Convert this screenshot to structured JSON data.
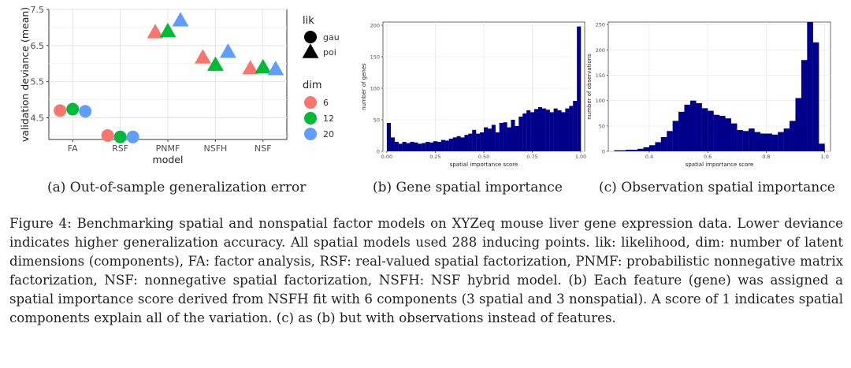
{
  "panel_a": {
    "caption": "(a) Out-of-sample generalization error",
    "legend": {
      "lik_title": "lik",
      "lik_items": [
        {
          "label": "gau",
          "shape": "circle"
        },
        {
          "label": "poi",
          "shape": "triangle"
        }
      ],
      "dim_title": "dim",
      "dim_items": [
        {
          "label": "6",
          "color": "#F8766D"
        },
        {
          "label": "12",
          "color": "#00BA38"
        },
        {
          "label": "20",
          "color": "#619CFF"
        }
      ]
    }
  },
  "panel_b": {
    "caption": "(b) Gene spatial importance"
  },
  "panel_c": {
    "caption": "(c) Observation spatial importance"
  },
  "figure_caption": {
    "text": "Figure 4: Benchmarking spatial and nonspatial factor models on XYZeq mouse liver gene expression data. Lower deviance indicates higher generalization accuracy. All spatial models used 288 inducing points. lik: likelihood, dim: number of latent dimensions (components), FA: factor analysis, RSF: real-valued spatial factorization, PNMF: probabilistic nonnegative matrix factorization, NSF: nonnegative spatial factorization, NSFH: NSF hybrid model. (b) Each feature (gene) was assigned a spatial importance score derived from NSFH fit with 6 components (3 spatial and 3 nonspatial). A score of 1 indicates spatial components explain all of the variation. (c) as (b) but with observations instead of features."
  },
  "chart_data": [
    {
      "type": "scatter",
      "xlabel": "model",
      "ylabel": "validation deviance (mean)",
      "categories": [
        "FA",
        "RSF",
        "PNMF",
        "NSFH",
        "NSF"
      ],
      "ylim": [
        3.9,
        7.5
      ],
      "yticks": [
        "4.5",
        "5.5",
        "6.5",
        "7.5"
      ],
      "grid": true,
      "points": [
        {
          "model": "FA",
          "dim": "6",
          "lik": "gau",
          "y": 4.7
        },
        {
          "model": "FA",
          "dim": "12",
          "lik": "gau",
          "y": 4.74
        },
        {
          "model": "FA",
          "dim": "20",
          "lik": "gau",
          "y": 4.68
        },
        {
          "model": "RSF",
          "dim": "6",
          "lik": "gau",
          "y": 4.01
        },
        {
          "model": "RSF",
          "dim": "12",
          "lik": "gau",
          "y": 3.97
        },
        {
          "model": "RSF",
          "dim": "20",
          "lik": "gau",
          "y": 3.97
        },
        {
          "model": "PNMF",
          "dim": "6",
          "lik": "poi",
          "y": 6.87
        },
        {
          "model": "PNMF",
          "dim": "12",
          "lik": "poi",
          "y": 6.9
        },
        {
          "model": "PNMF",
          "dim": "20",
          "lik": "poi",
          "y": 7.2
        },
        {
          "model": "NSFH",
          "dim": "6",
          "lik": "poi",
          "y": 6.17
        },
        {
          "model": "NSFH",
          "dim": "12",
          "lik": "poi",
          "y": 5.97
        },
        {
          "model": "NSFH",
          "dim": "20",
          "lik": "poi",
          "y": 6.33
        },
        {
          "model": "NSF",
          "dim": "6",
          "lik": "poi",
          "y": 5.87
        },
        {
          "model": "NSF",
          "dim": "12",
          "lik": "poi",
          "y": 5.9
        },
        {
          "model": "NSF",
          "dim": "20",
          "lik": "poi",
          "y": 5.85
        }
      ]
    },
    {
      "type": "bar",
      "xlabel": "spatial importance score",
      "ylabel": "number of genes",
      "xlim": [
        -0.02,
        1.02
      ],
      "xticks": [
        "0.00",
        "0.25",
        "0.50",
        "0.75",
        "1.00"
      ],
      "ylim": [
        0,
        205
      ],
      "yticks": [
        "0",
        "50",
        "100",
        "150",
        "200"
      ],
      "bar_color": "#00008B",
      "bins": [
        0.0,
        0.02,
        0.04,
        0.06,
        0.08,
        0.1,
        0.12,
        0.14,
        0.16,
        0.18,
        0.2,
        0.22,
        0.24,
        0.26,
        0.28,
        0.3,
        0.32,
        0.34,
        0.36,
        0.38,
        0.4,
        0.42,
        0.44,
        0.46,
        0.48,
        0.5,
        0.52,
        0.54,
        0.56,
        0.58,
        0.6,
        0.62,
        0.64,
        0.66,
        0.68,
        0.7,
        0.72,
        0.74,
        0.76,
        0.78,
        0.8,
        0.82,
        0.84,
        0.86,
        0.88,
        0.9,
        0.92,
        0.94,
        0.96,
        0.98
      ],
      "values": [
        45,
        22,
        15,
        12,
        15,
        13,
        15,
        14,
        12,
        13,
        15,
        14,
        16,
        15,
        18,
        17,
        20,
        22,
        24,
        22,
        26,
        28,
        34,
        28,
        30,
        38,
        36,
        42,
        30,
        45,
        46,
        38,
        50,
        40,
        55,
        60,
        65,
        62,
        67,
        70,
        68,
        66,
        62,
        68,
        65,
        62,
        68,
        72,
        80,
        198
      ]
    },
    {
      "type": "bar",
      "xlabel": "spatial importance score",
      "ylabel": "number of observations",
      "xlim": [
        0.26,
        1.02
      ],
      "xticks": [
        "0.4",
        "0.6",
        "0.8",
        "1.0"
      ],
      "ylim": [
        0,
        255
      ],
      "yticks": [
        "0",
        "50",
        "100",
        "150",
        "200",
        "250"
      ],
      "bar_color": "#00008B",
      "bins": [
        0.28,
        0.3,
        0.32,
        0.34,
        0.36,
        0.38,
        0.4,
        0.42,
        0.44,
        0.46,
        0.48,
        0.5,
        0.52,
        0.54,
        0.56,
        0.58,
        0.6,
        0.62,
        0.64,
        0.66,
        0.68,
        0.7,
        0.72,
        0.74,
        0.76,
        0.78,
        0.8,
        0.82,
        0.84,
        0.86,
        0.88,
        0.9,
        0.92,
        0.94,
        0.96,
        0.98
      ],
      "values": [
        2,
        2,
        3,
        3,
        5,
        8,
        12,
        18,
        28,
        40,
        60,
        78,
        92,
        100,
        95,
        85,
        80,
        72,
        70,
        65,
        55,
        42,
        40,
        45,
        38,
        35,
        35,
        33,
        38,
        45,
        60,
        105,
        180,
        255,
        215,
        15
      ]
    }
  ]
}
